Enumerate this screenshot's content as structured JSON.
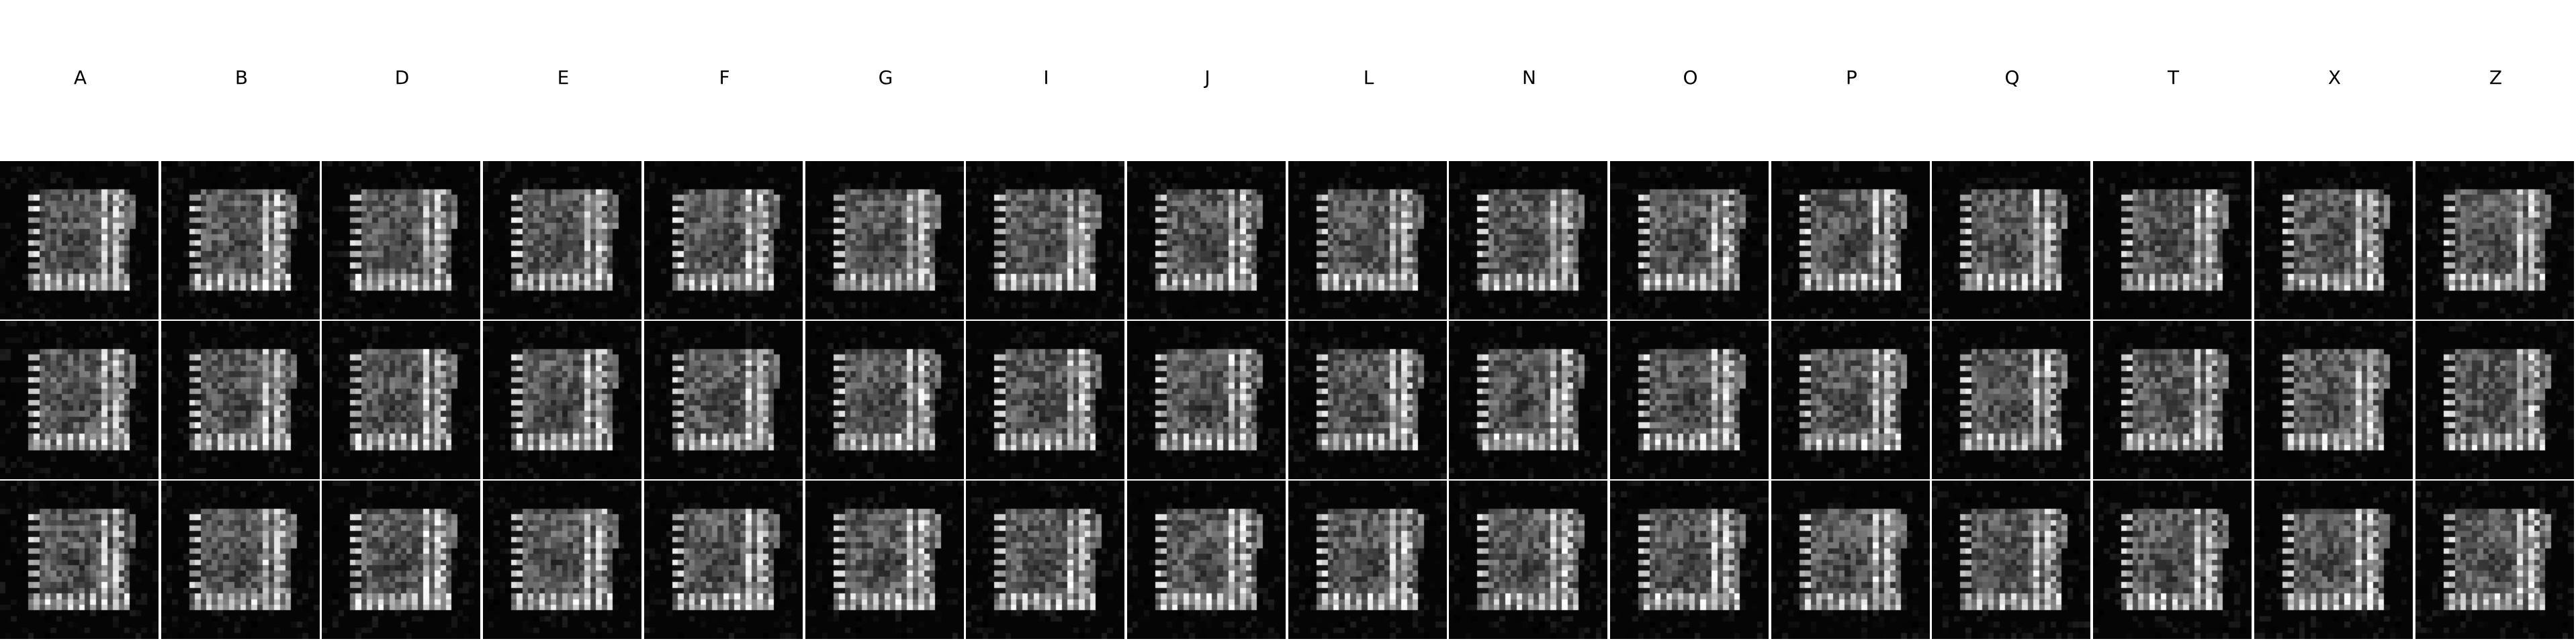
{
  "columns": [
    "A",
    "B",
    "D",
    "E",
    "F",
    "G",
    "I",
    "J",
    "L",
    "N",
    "O",
    "P",
    "Q",
    "T",
    "X",
    "Z"
  ],
  "rows": 3,
  "colors": {
    "background": "#ffffff",
    "cell_background": "#000000",
    "pixel_tint": "#ffffff"
  }
}
